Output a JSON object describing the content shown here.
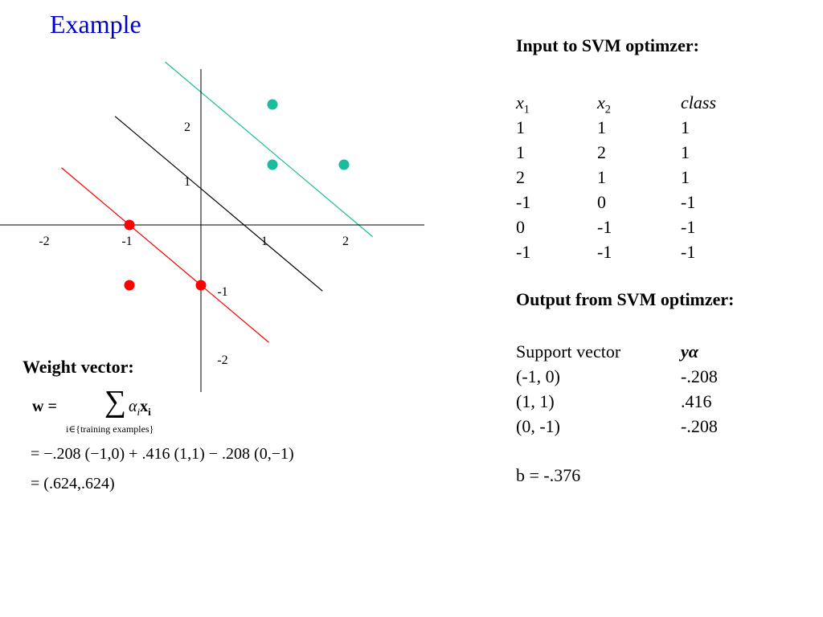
{
  "title": "Example",
  "colors": {
    "title": "#0000cc",
    "positive": "#1abc9c",
    "negative": "#ff0000",
    "separator": "#000000"
  },
  "plot": {
    "x_ticks": [
      "-2",
      "-1",
      "1",
      "2"
    ],
    "y_ticks": [
      "2",
      "1",
      "-1",
      "-2"
    ],
    "positive_points": [
      [
        1,
        1
      ],
      [
        1,
        2
      ],
      [
        2,
        1
      ]
    ],
    "negative_points": [
      [
        -1,
        0
      ],
      [
        0,
        -1
      ],
      [
        -1,
        -1
      ]
    ],
    "lines": [
      {
        "name": "positive-margin",
        "w": [
          0.624,
          0.624
        ],
        "b": -1.376
      },
      {
        "name": "decision-boundary",
        "w": [
          0.624,
          0.624
        ],
        "b": -0.376
      },
      {
        "name": "negative-margin",
        "w": [
          0.624,
          0.624
        ],
        "b": 0.624
      }
    ]
  },
  "input": {
    "heading": "Input to SVM optimzer:",
    "headers": {
      "x1": "x",
      "x1_sub": "1",
      "x2": "x",
      "x2_sub": "2",
      "class": "class"
    },
    "rows": [
      [
        "1",
        "1",
        "1"
      ],
      [
        "1",
        "2",
        "1"
      ],
      [
        "2",
        "1",
        "1"
      ],
      [
        "-1",
        "0",
        "-1"
      ],
      [
        "0",
        "-1",
        "-1"
      ],
      [
        "-1",
        "-1",
        "-1"
      ]
    ]
  },
  "output": {
    "heading": "Output from SVM optimzer:",
    "headers": {
      "sv": "Support vector",
      "ya": "yα"
    },
    "rows": [
      [
        "(-1, 0)",
        "-.208"
      ],
      [
        "(1, 1)",
        ".416"
      ],
      [
        "(0, -1)",
        "-.208"
      ]
    ],
    "bias": "b = -.376"
  },
  "weight": {
    "heading": "Weight vector:",
    "w_lhs": "w =",
    "sum_symbol": "∑",
    "alpha_i": "α",
    "alpha_sub": "i",
    "x_i": "x",
    "x_sub": "i",
    "sum_index": "i∈{training examples}",
    "line2": "= −.208 (−1,0) + .416 (1,1) − .208 (0,−1)",
    "line3": "= (.624,.624)"
  }
}
